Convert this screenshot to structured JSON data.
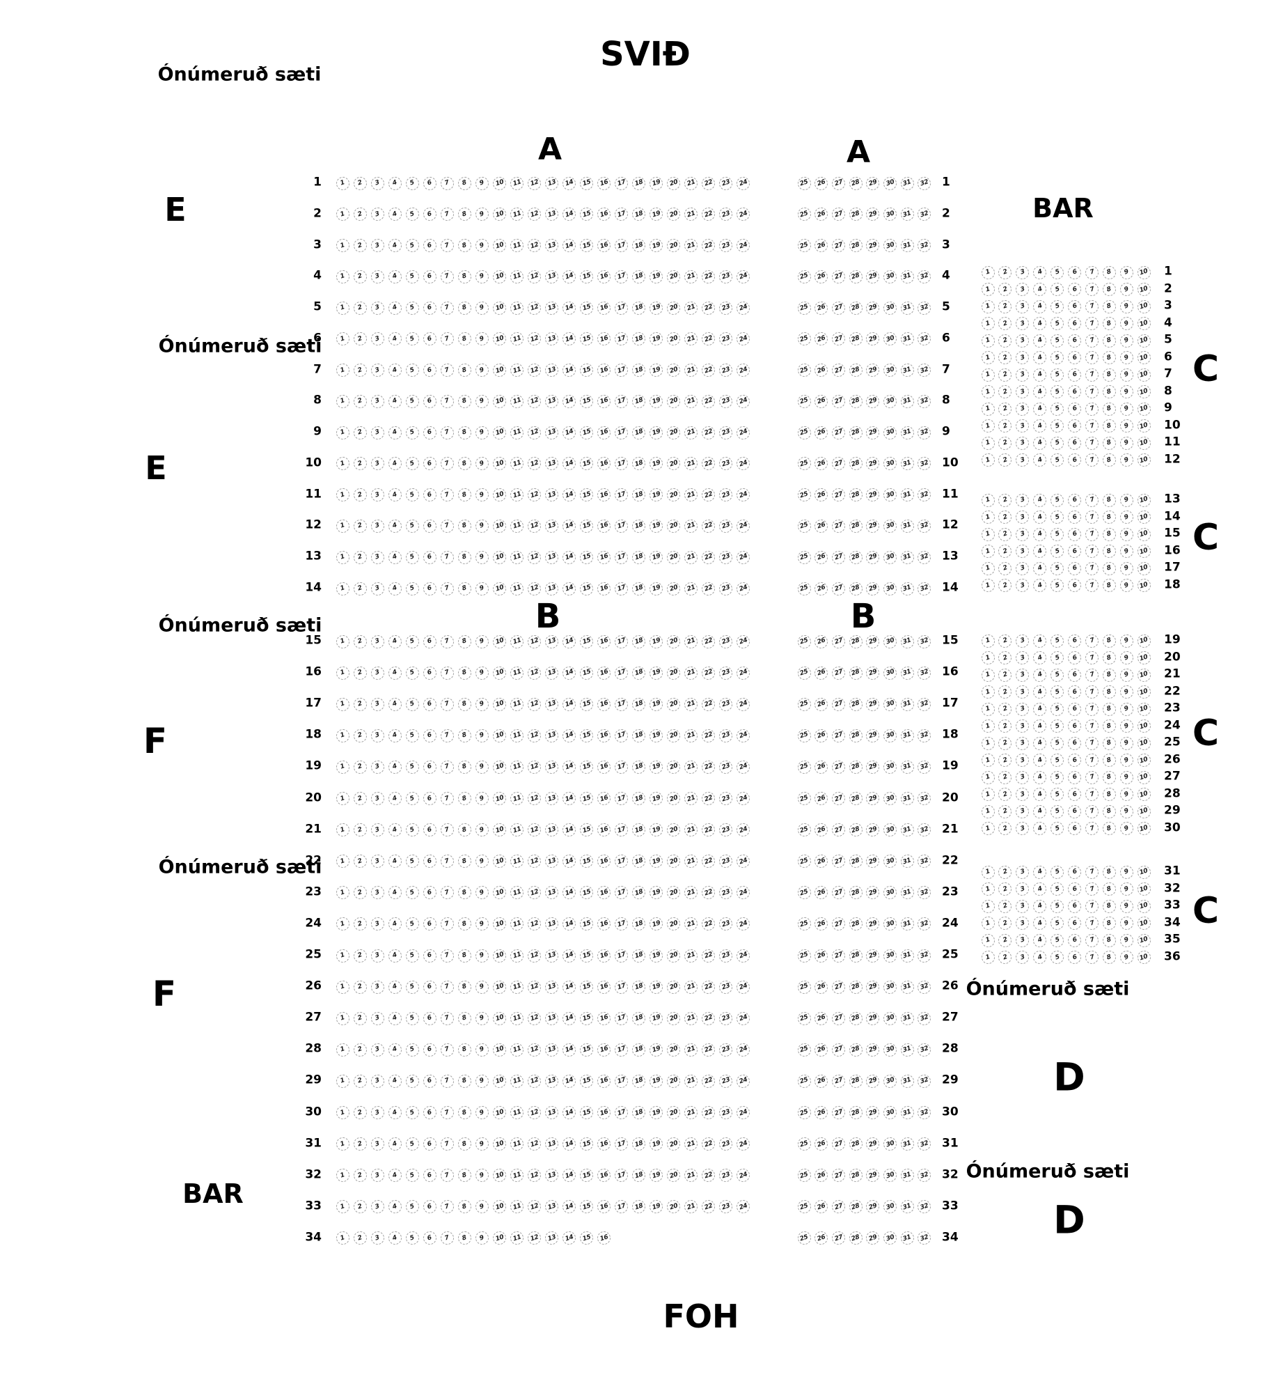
{
  "page": {
    "stage_label": "SVIÐ",
    "foh_label": "FOH"
  },
  "labels": {
    "unnumbered_seats": "Ónúmeruð sæti",
    "bar": "BAR",
    "section_a": "A",
    "section_b": "B",
    "section_c": "C",
    "section_d": "D",
    "section_e": "E",
    "section_f": "F"
  },
  "seatmap": {
    "main_left_block": {
      "row_from": 1,
      "row_to": 34,
      "seat_from": 1,
      "seat_to": 24,
      "last_row": 34,
      "last_row_seat_to": 16,
      "row_label_side": "left",
      "section_a_rows": "1-14",
      "section_b_rows": "15-34"
    },
    "main_right_block": {
      "row_from": 1,
      "row_to": 34,
      "seat_from": 25,
      "seat_to": 32,
      "row_label_side": "right",
      "section_a_rows": "1-14",
      "section_b_rows": "15-34"
    },
    "c_block": {
      "seat_from": 1,
      "seat_to": 10,
      "row_label_side": "right",
      "row_groups": [
        {
          "row_from": 1,
          "row_to": 12
        },
        {
          "row_from": 13,
          "row_to": 18
        },
        {
          "row_from": 19,
          "row_to": 30
        },
        {
          "row_from": 31,
          "row_to": 36
        }
      ]
    }
  }
}
